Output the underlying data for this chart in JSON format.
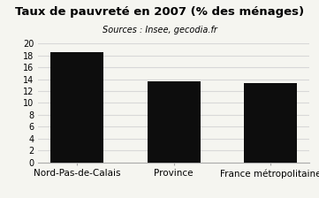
{
  "categories": [
    "Nord-Pas-de-Calais",
    "Province",
    "France métropolitaine"
  ],
  "values": [
    18.5,
    13.7,
    13.4
  ],
  "bar_color": "#0d0d0d",
  "bar_width": 0.55,
  "title": "Taux de pauvreté en 2007 (% des ménages)",
  "subtitle": "Sources : Insee, gecodia.fr",
  "title_fontsize": 9.5,
  "subtitle_fontsize": 7,
  "ylim": [
    0,
    20
  ],
  "yticks": [
    0,
    2,
    4,
    6,
    8,
    10,
    12,
    14,
    16,
    18,
    20
  ],
  "background_color": "#f5f5f0",
  "grid_color": "#d8d8d8",
  "tick_label_fontsize": 7,
  "xlabel_fontsize": 7.5
}
